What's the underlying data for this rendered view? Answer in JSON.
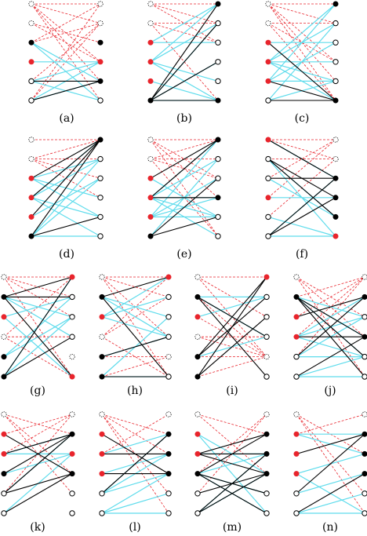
{
  "captions": [
    "(a)",
    "(b)",
    "(c)",
    "(d)",
    "(e)",
    "(f)",
    "(g)",
    "(h)",
    "(i)",
    "(j)",
    "(k)",
    "(l)",
    "(m)",
    "(n)"
  ],
  "colors": {
    "black_edge": "#000000",
    "cyan_edge": "#5fdcec",
    "red_dashed_edge": "#e8242c",
    "red_vertex": "#e8242c",
    "black_vertex": "#000000",
    "white_vertex": "#ffffff"
  },
  "legend_vertex_kinds": [
    "dotted-white",
    "red",
    "black",
    "white"
  ],
  "panels": [
    {
      "n": 6,
      "left": [
        "d",
        "d",
        "b",
        "r",
        "w",
        "w"
      ],
      "right": [
        "d",
        "d",
        "b",
        "r",
        "b",
        "w"
      ]
    },
    {
      "n": 6,
      "left": [
        "d",
        "d",
        "r",
        "r",
        "r",
        "b"
      ],
      "right": [
        "b",
        "w",
        "w",
        "w",
        "w",
        "b"
      ]
    },
    {
      "n": 6,
      "left": [
        "d",
        "d",
        "r",
        "r",
        "r",
        "w"
      ],
      "right": [
        "b",
        "w",
        "w",
        "w",
        "w",
        "b"
      ]
    },
    {
      "n": 6,
      "left": [
        "d",
        "d",
        "r",
        "r",
        "r",
        "b"
      ],
      "right": [
        "b",
        "w",
        "w",
        "w",
        "w",
        "w"
      ]
    },
    {
      "n": 6,
      "left": [
        "d",
        "d",
        "r",
        "r",
        "r",
        "b"
      ],
      "right": [
        "b",
        "w",
        "w",
        "b",
        "w",
        "w"
      ]
    },
    {
      "n": 6,
      "left": [
        "r",
        "w",
        "w",
        "r",
        "w",
        "w"
      ],
      "right": [
        "d",
        "d",
        "b",
        "b",
        "b",
        "r"
      ]
    },
    {
      "n": 6,
      "left": [
        "d",
        "b",
        "r",
        "d",
        "b",
        "b"
      ],
      "right": [
        "r",
        "w",
        "w",
        "w",
        "d",
        "r"
      ]
    },
    {
      "n": 6,
      "left": [
        "d",
        "b",
        "r",
        "d",
        "b",
        "b"
      ],
      "right": [
        "r",
        "w",
        "w",
        "w",
        "d",
        "w"
      ]
    },
    {
      "n": 6,
      "left": [
        "d",
        "b",
        "r",
        "d",
        "b",
        "b"
      ],
      "right": [
        "r",
        "w",
        "w",
        "w",
        "d",
        "w"
      ]
    },
    {
      "n": 6,
      "left": [
        "d",
        "b",
        "r",
        "r",
        "w",
        "w"
      ],
      "right": [
        "d",
        "b",
        "w",
        "b",
        "w",
        "w"
      ]
    },
    {
      "n": 6,
      "left": [
        "d",
        "r",
        "r",
        "b",
        "w",
        "w"
      ],
      "right": [
        "d",
        "b",
        "r",
        "b",
        "w",
        "w"
      ]
    },
    {
      "n": 6,
      "left": [
        "d",
        "r",
        "r",
        "r",
        "w",
        "w"
      ],
      "right": [
        "d",
        "b",
        "b",
        "b",
        "w",
        "w"
      ]
    },
    {
      "n": 6,
      "left": [
        "d",
        "r",
        "r",
        "b",
        "w",
        "w"
      ],
      "right": [
        "d",
        "b",
        "b",
        "b",
        "w",
        "w"
      ]
    },
    {
      "n": 6,
      "left": [
        "d",
        "r",
        "r",
        "r",
        "w",
        "w"
      ],
      "right": [
        "d",
        "b",
        "b",
        "b",
        "w",
        "w"
      ]
    }
  ]
}
